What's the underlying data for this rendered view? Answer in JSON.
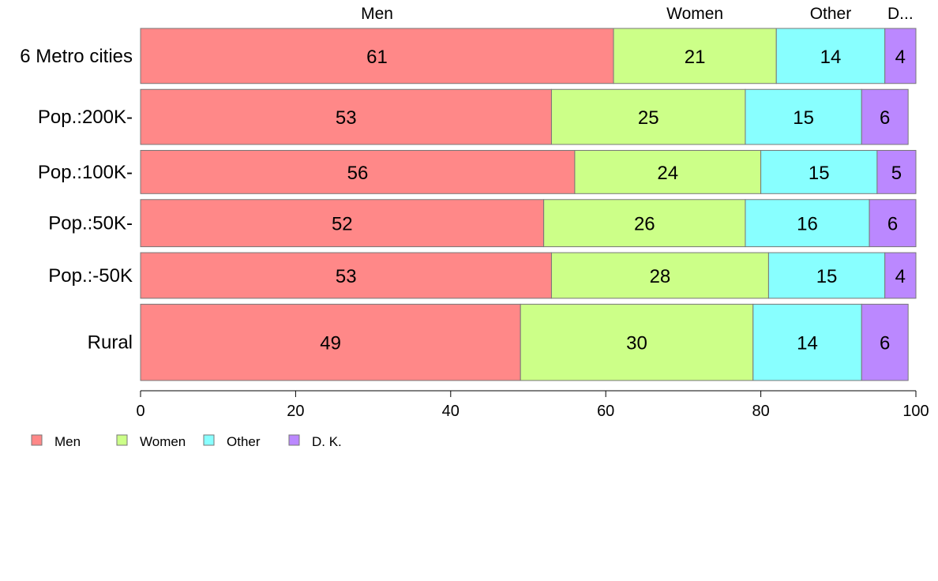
{
  "chart_data": {
    "type": "bar",
    "orientation": "horizontal",
    "stacked": true,
    "title": "",
    "xlabel": "",
    "ylabel": "",
    "xlim": [
      0,
      100
    ],
    "xticks": [
      0,
      20,
      40,
      60,
      80,
      100
    ],
    "grid": false,
    "legend_position": "bottom-left",
    "categories": [
      "6 Metro cities",
      "Pop.:200K-",
      "Pop.:100K-",
      "Pop.:50K-",
      "Pop.:-50K",
      "Rural"
    ],
    "series": [
      {
        "name": "Men",
        "color": "#ff8888",
        "values": [
          61,
          53,
          56,
          52,
          53,
          49
        ]
      },
      {
        "name": "Women",
        "color": "#ccff88",
        "values": [
          21,
          25,
          24,
          26,
          28,
          30
        ]
      },
      {
        "name": "Other",
        "color": "#88ffff",
        "values": [
          14,
          15,
          15,
          16,
          15,
          14
        ]
      },
      {
        "name": "D. K.",
        "color": "#bb88ff",
        "values": [
          4,
          6,
          5,
          6,
          4,
          6
        ]
      }
    ],
    "bar_widths": [
      70,
      70,
      55,
      60,
      58,
      97
    ],
    "top_labels": [
      "Men",
      "Women",
      "Other",
      "D..."
    ]
  }
}
